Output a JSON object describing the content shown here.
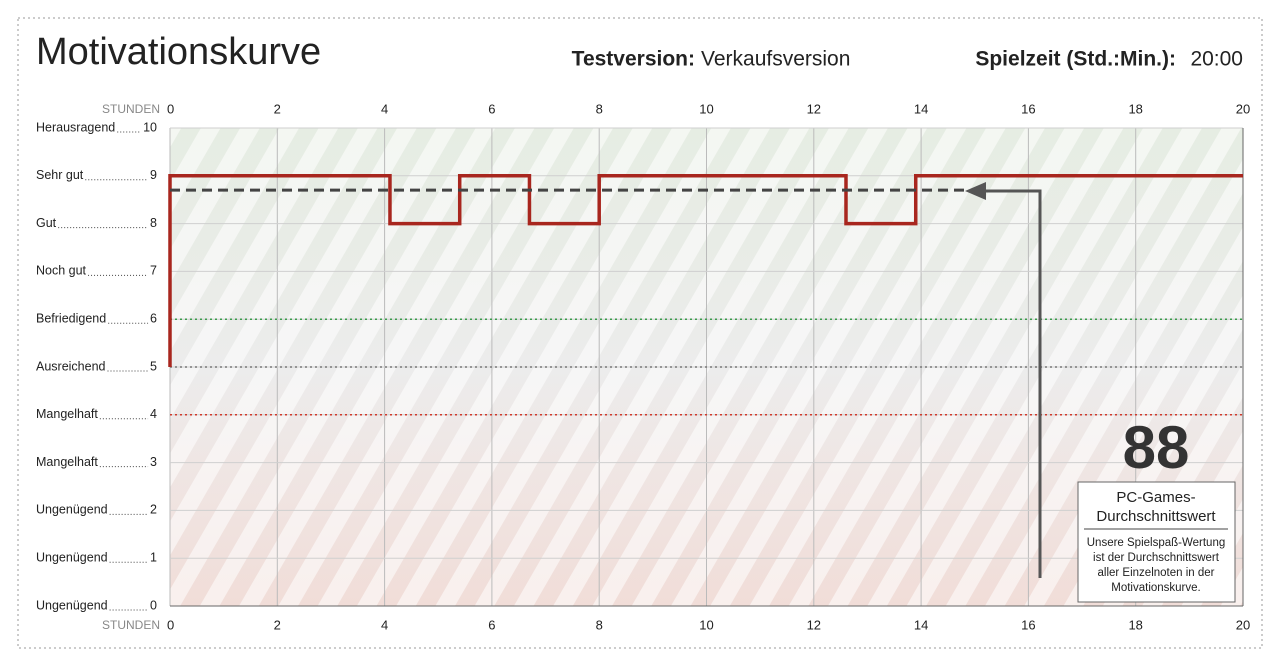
{
  "chart_data": {
    "type": "line",
    "step": true,
    "title": "Motivationskurve",
    "test_label": "Testversion:",
    "test_value": "Verkaufsversion",
    "time_label": "Spielzeit (Std.:Min.):",
    "time_value": "20:00",
    "x_label": "STUNDEN",
    "xlim": [
      0,
      20
    ],
    "xticks": [
      0,
      2,
      4,
      6,
      8,
      10,
      12,
      14,
      16,
      18,
      20
    ],
    "ylim": [
      0,
      10
    ],
    "yticks": [
      {
        "value": 10,
        "label": "Herausragend"
      },
      {
        "value": 9,
        "label": "Sehr gut"
      },
      {
        "value": 8,
        "label": "Gut"
      },
      {
        "value": 7,
        "label": "Noch gut"
      },
      {
        "value": 6,
        "label": "Befriedigend"
      },
      {
        "value": 5,
        "label": "Ausreichend"
      },
      {
        "value": 4,
        "label": "Mangelhaft"
      },
      {
        "value": 3,
        "label": "Mangelhaft"
      },
      {
        "value": 2,
        "label": "Ungenügend"
      },
      {
        "value": 1,
        "label": "Ungenügend"
      },
      {
        "value": 0,
        "label": "Ungenügend"
      }
    ],
    "threshold_lines": [
      {
        "value": 6,
        "color": "#3a9a4a"
      },
      {
        "value": 5,
        "color": "#777777"
      },
      {
        "value": 4,
        "color": "#d0392b"
      }
    ],
    "grid": true,
    "series": [
      {
        "color": "#a8261e",
        "style": "solid",
        "x": [
          0,
          0,
          4.1,
          4.1,
          5.4,
          5.4,
          6.7,
          6.7,
          8,
          8,
          12.6,
          12.6,
          13.9,
          13.9,
          20
        ],
        "values": [
          5,
          9,
          9,
          8,
          8,
          9,
          9,
          8,
          8,
          9,
          9,
          8,
          8,
          9,
          9
        ]
      },
      {
        "color": "#444444",
        "style": "dashed",
        "x": [
          0,
          14.8
        ],
        "values": [
          8.7,
          8.7
        ]
      }
    ],
    "annotation": {
      "score": "88",
      "heading": [
        "PC-Games-",
        "Durchschnittswert"
      ],
      "text": [
        "Unsere Spielspaß-Wertung",
        "ist der Durchschnittswert",
        "aller Einzelnoten in der",
        "Motivationskurve."
      ]
    }
  }
}
